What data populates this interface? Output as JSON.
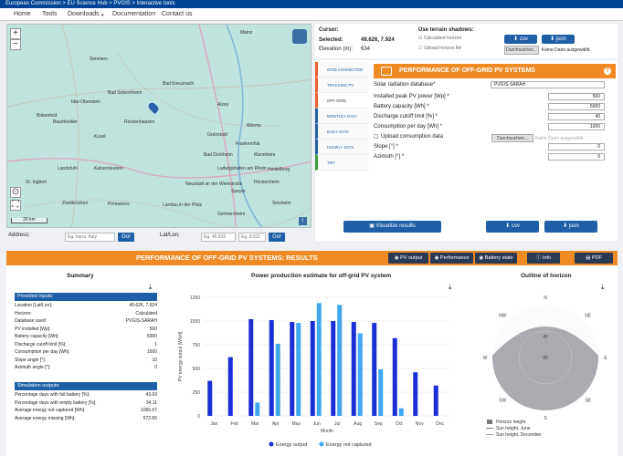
{
  "topbar": {
    "breadcrumb": "European Commission > EU Science Hub > PVGIS > Interactive tools"
  },
  "menu": {
    "items": [
      "Home",
      "Tools",
      "Downloads",
      "Documentation",
      "Contact us"
    ]
  },
  "map": {
    "towns": [
      [
        "Mainz",
        255,
        6
      ],
      [
        "Bad Kreuznach",
        170,
        62
      ],
      [
        "Idar-Oberstein",
        70,
        82
      ],
      [
        "Birkenfeld",
        32,
        97
      ],
      [
        "Baumholder",
        50,
        104
      ],
      [
        "Kusel",
        95,
        120
      ],
      [
        "Alzey",
        230,
        85
      ],
      [
        "Worms",
        262,
        108
      ],
      [
        "Frankenthal",
        250,
        128
      ],
      [
        "Grünstadt",
        219,
        118
      ],
      [
        "Mannheim",
        270,
        140
      ],
      [
        "Ludwigshafen am Rhein",
        230,
        155
      ],
      [
        "Heidelberg",
        285,
        156
      ],
      [
        "Kaiserslautern",
        95,
        155
      ],
      [
        "Bad Dürkheim",
        215,
        140
      ],
      [
        "Neustadt an der Weinstraße",
        195,
        172
      ],
      [
        "Hockenheim",
        270,
        170
      ],
      [
        "Landau in der Pfalz",
        170,
        195
      ],
      [
        "Pirmasens",
        110,
        194
      ],
      [
        "Zweibrücken",
        60,
        193
      ],
      [
        "St. Ingbert",
        20,
        170
      ],
      [
        "Rockenhausen",
        128,
        104
      ],
      [
        "Landstuhl",
        55,
        155
      ],
      [
        "Speyer",
        245,
        180
      ],
      [
        "Germersheim",
        230,
        205
      ],
      [
        "Bad Sobernheim",
        110,
        72
      ],
      [
        "Simmern",
        90,
        35
      ],
      [
        "Sinsheim",
        290,
        193
      ]
    ],
    "scale": "20 km",
    "attribution": "Leaflet | © OpenStreetMap contributors"
  },
  "address": {
    "label": "Address:",
    "placeholder": "Eg. Ispra, Italy",
    "go": "Go!",
    "latlon_label": "Lat/Lon:",
    "lat_ph": "Eg. 45.815",
    "lon_ph": "Eg. 8.611",
    "go2": "Go!"
  },
  "cursor": {
    "cursor_label": "Cursor:",
    "selected_label": "Selected:",
    "selected_value": "49.626, 7.924",
    "elev_label": "Elevation (m):",
    "elev_value": "634",
    "terrain_label": "Use terrain shadows:",
    "calc_horizon": "Calculated horizon",
    "upload_horizon": "Upload horizon file",
    "csv": "csv",
    "json": "json",
    "browse": "Durchsuchen...",
    "nofile": "Keine Datei ausgewählt."
  },
  "tabs": [
    "GRID CONNECTED",
    "TRACKING PV",
    "OFF-GRID",
    "MONTHLY DATA",
    "DAILY DATA",
    "HOURLY DATA",
    "TMY"
  ],
  "tabcolors": [
    "#e9622b",
    "#e9622b",
    "#e9622b",
    "#1e5fa8",
    "#1e5fa8",
    "#1e5fa8",
    "#3a9b3a"
  ],
  "offgrid": {
    "title": "PERFORMANCE OF OFF-GRID PV SYSTEMS",
    "db_label": "Solar radiation database*",
    "db_value": "PVGIS-SARAH",
    "fields": [
      {
        "label": "Installed peak PV power [Wp] *",
        "value": "560"
      },
      {
        "label": "Battery capacity [Wh] *",
        "value": "5000"
      },
      {
        "label": "Discharge cutoff limit [%] *",
        "value": "40"
      },
      {
        "label": "Consumption per day [Wh] *",
        "value": "1000"
      },
      {
        "label": "Upload consumption data",
        "value": ""
      },
      {
        "label": "Slope [°] *",
        "value": "0"
      },
      {
        "label": "Azimuth [°] *",
        "value": "0"
      }
    ],
    "browse": "Durchsuchen...",
    "nofile": "Keine Datei ausgewählt.",
    "visualize": "Visualize results",
    "csv": "csv",
    "json": "json"
  },
  "results": {
    "title": "PERFORMANCE OF OFF-GRID PV SYSTEMS: RESULTS",
    "tabs": [
      "PV output",
      "Performance",
      "Battery state",
      "Info",
      "PDF"
    ],
    "summary_title": "Summary",
    "provided_inputs": "Provided inputs:",
    "inputs": [
      [
        "Location [Lat/Lon]:",
        "49.626, 7.924"
      ],
      [
        "Horizon:",
        "Calculated"
      ],
      [
        "Database used:",
        "PVGIS-SARAH"
      ],
      [
        "PV installed [Wp]:",
        "560"
      ],
      [
        "Battery capacity [Wh]:",
        "5000"
      ],
      [
        "Discharge cutoff limit [%]:",
        "1"
      ],
      [
        "Consumption per day [Wh]:",
        "1000"
      ],
      [
        "Slope angle [°]:",
        "10"
      ],
      [
        "Azimuth angle [°]:",
        "0"
      ]
    ],
    "sim_outputs": "Simulation outputs:",
    "outputs": [
      [
        "Percentage days with full battery [%]:",
        "43.69"
      ],
      [
        "Percentage days with empty battery [%]:",
        "34.11"
      ],
      [
        "Average energy not captured [Wh]:",
        "1065.67"
      ],
      [
        "Average energy missing [Wh]:",
        "572.65"
      ]
    ],
    "chart_title": "Power production estimate for off-grid PV system",
    "horizon_title": "Outline of horizon",
    "horizon_legend": [
      "Horizon height",
      "Sun height, June",
      "Sun height, December"
    ],
    "compass": [
      "N",
      "NE",
      "E",
      "SE",
      "S",
      "SW",
      "W",
      "NW"
    ],
    "rings": [
      "45",
      "90"
    ]
  },
  "chart_data": {
    "type": "bar",
    "categories": [
      "Jan",
      "Feb",
      "Mar",
      "Apr",
      "May",
      "Jun",
      "Jul",
      "Aug",
      "Sep",
      "Oct",
      "Nov",
      "Dec"
    ],
    "series": [
      {
        "name": "Energy output",
        "values": [
          370,
          620,
          1020,
          1010,
          990,
          1000,
          1000,
          990,
          980,
          820,
          460,
          320
        ],
        "color": "#1a2fd6"
      },
      {
        "name": "Energy not captured",
        "values": [
          0,
          0,
          140,
          760,
          980,
          1190,
          1170,
          870,
          490,
          80,
          0,
          0
        ],
        "color": "#3fa8f0"
      }
    ],
    "xlabel": "Month",
    "ylabel": "PV energy output [Wh/d]",
    "ylim": [
      0,
      1250
    ],
    "yticks": [
      0,
      250,
      500,
      750,
      1000,
      1250
    ]
  }
}
